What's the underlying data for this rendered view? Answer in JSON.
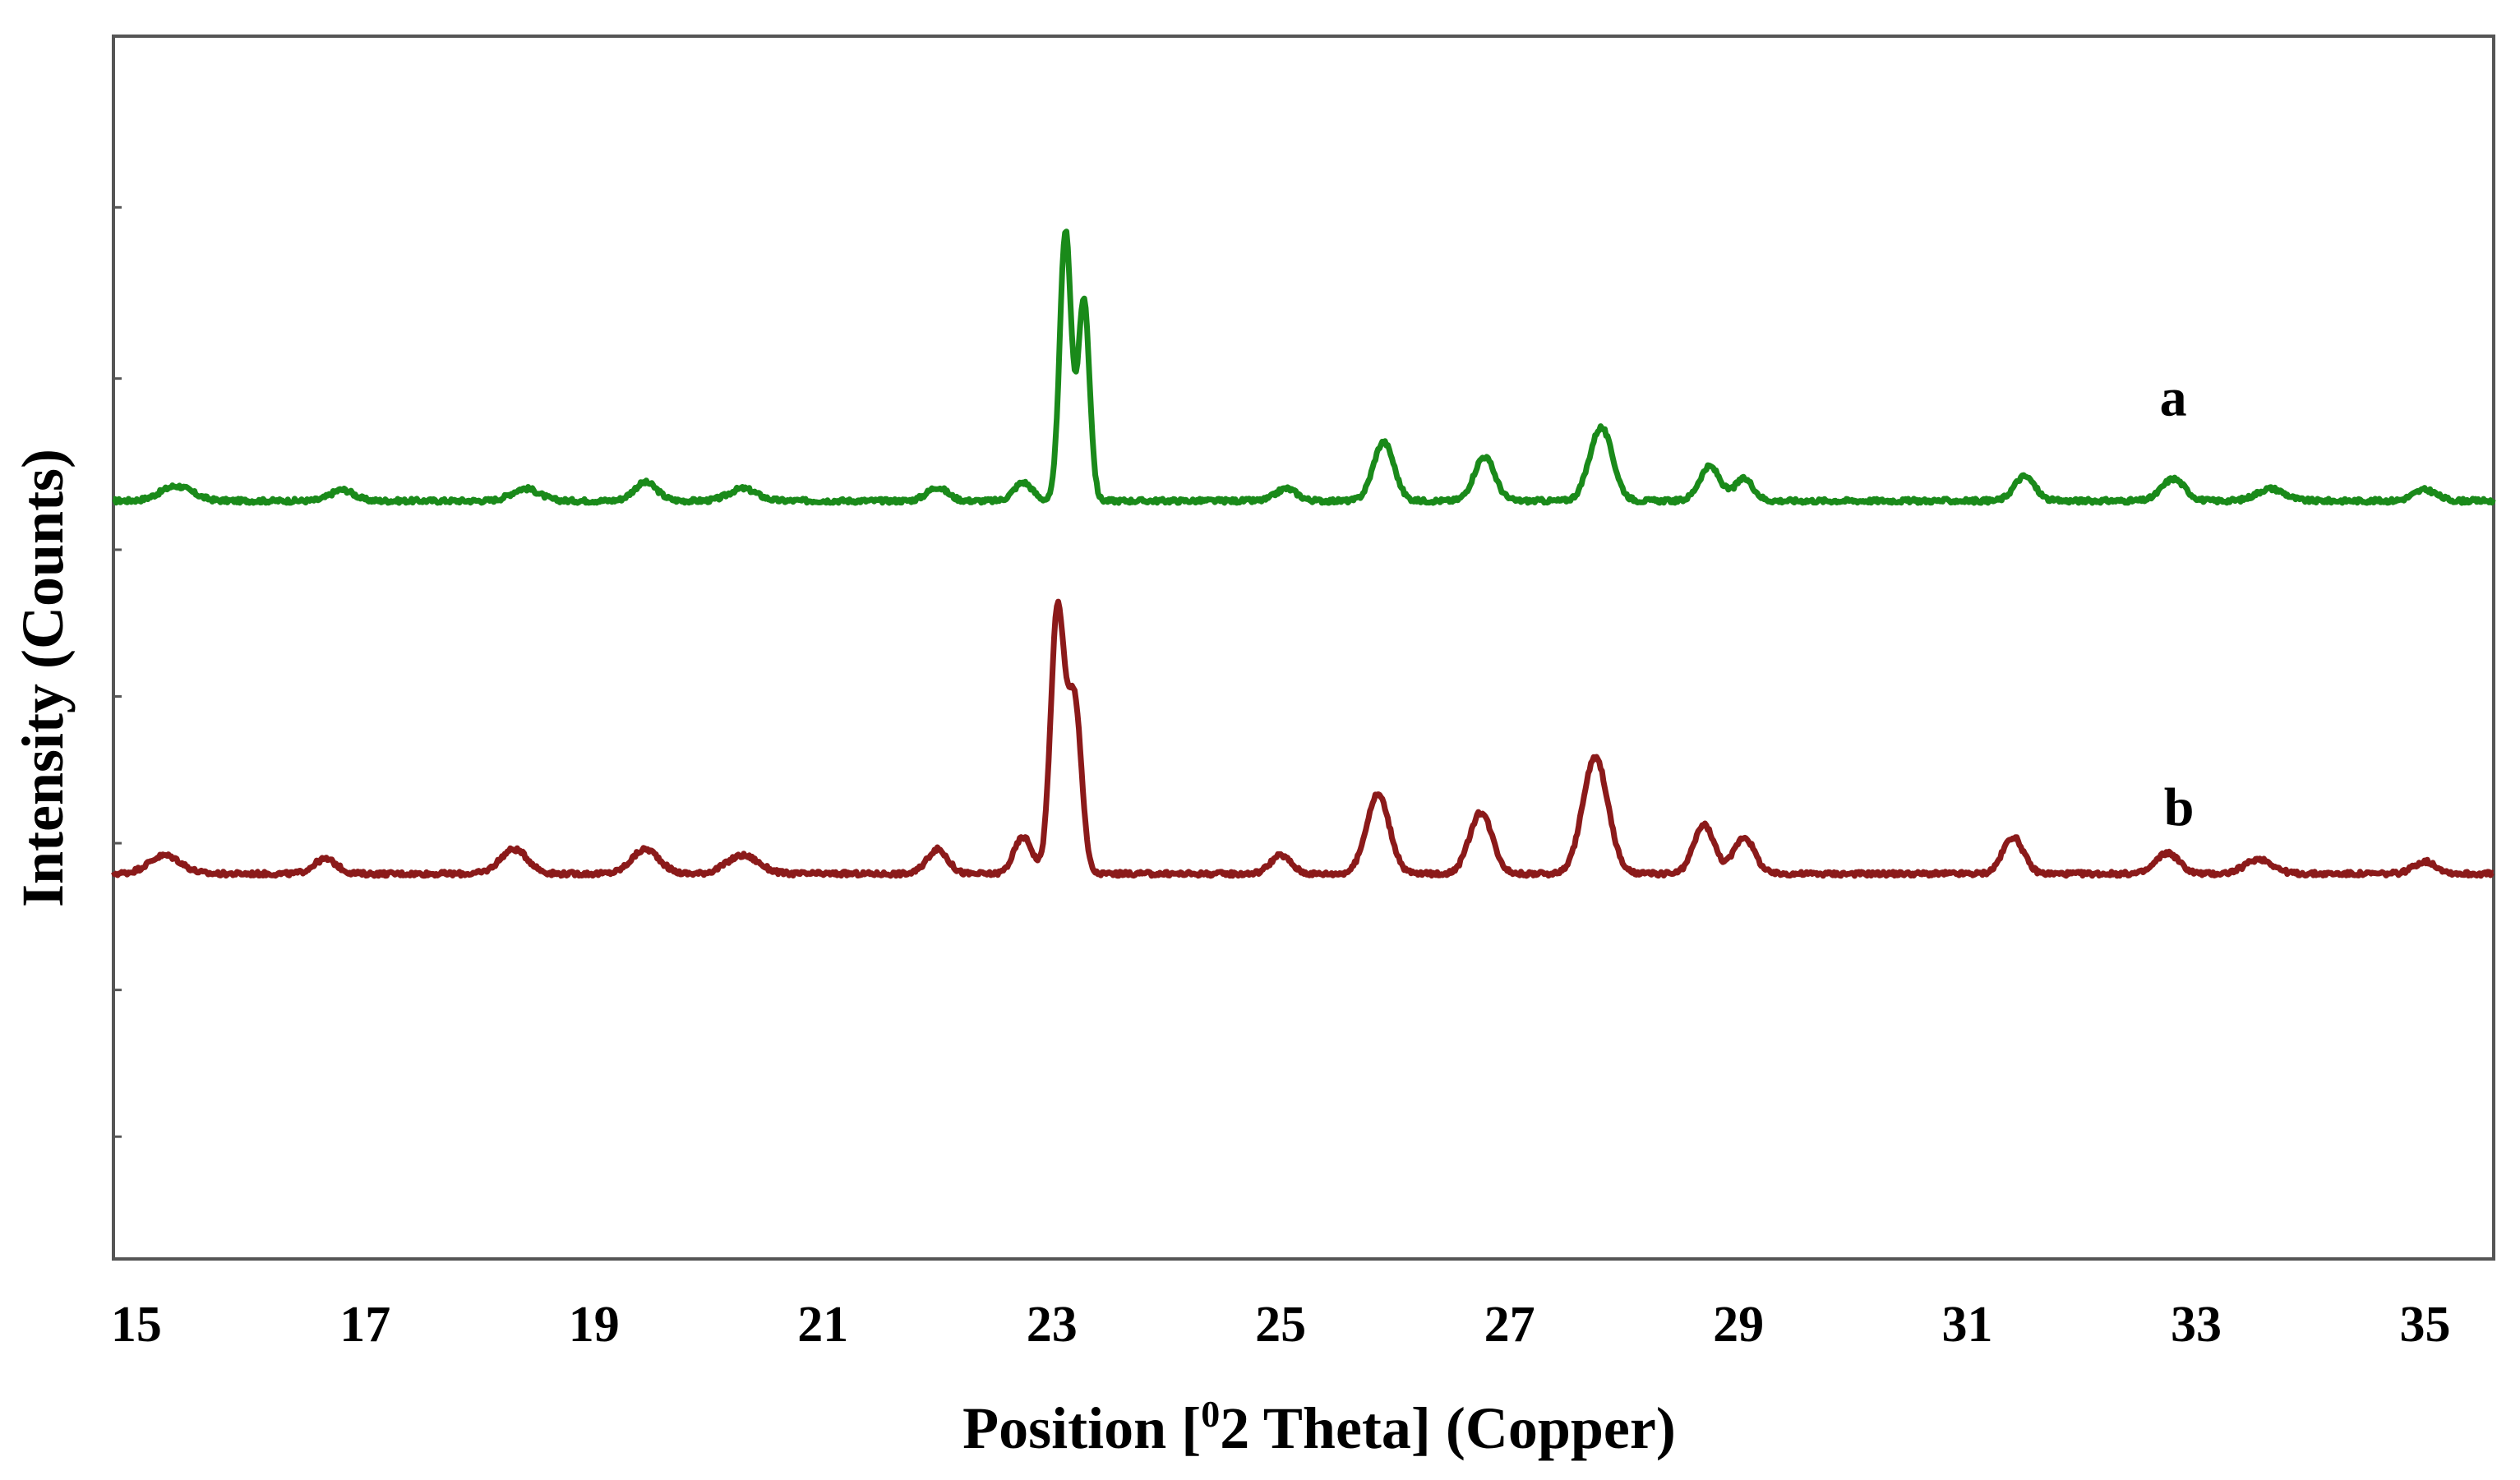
{
  "chart_data": {
    "type": "line",
    "title": "",
    "xlabel_pre": "Position [",
    "xlabel_sup": "0",
    "xlabel_post": "2 Theta] (Copper)",
    "ylabel": "Intensity (Counts)",
    "xlim": [
      14.8,
      35.6
    ],
    "ylim": [
      0,
      1000
    ],
    "x_ticks": [
      15,
      17,
      19,
      21,
      23,
      25,
      27,
      29,
      31,
      33,
      35
    ],
    "x_tick_labels": [
      "15",
      "17",
      "19",
      "21",
      "23",
      "25",
      "27",
      "29",
      "31",
      "33",
      "35"
    ],
    "grid": false,
    "legend": "none",
    "series": [
      {
        "name": "a",
        "color": "#1a8a1a",
        "baseline": 620,
        "label_at": [
          32.8,
          690
        ],
        "peaks": [
          [
            15.35,
            12,
            0.14
          ],
          [
            16.8,
            9,
            0.1
          ],
          [
            18.4,
            10,
            0.12
          ],
          [
            19.45,
            15,
            0.1
          ],
          [
            20.3,
            10,
            0.12
          ],
          [
            22.0,
            11,
            0.09
          ],
          [
            22.75,
            15,
            0.08
          ],
          [
            23.12,
            220,
            0.05
          ],
          [
            23.28,
            165,
            0.05
          ],
          [
            25.05,
            10,
            0.09
          ],
          [
            25.9,
            48,
            0.09
          ],
          [
            26.78,
            36,
            0.09
          ],
          [
            27.8,
            60,
            0.1
          ],
          [
            28.75,
            28,
            0.09
          ],
          [
            29.05,
            18,
            0.08
          ],
          [
            31.5,
            20,
            0.09
          ],
          [
            32.8,
            18,
            0.1
          ],
          [
            33.65,
            10,
            0.12
          ],
          [
            35.0,
            9,
            0.1
          ]
        ]
      },
      {
        "name": "b",
        "color": "#8b1a1a",
        "baseline": 315,
        "label_at": [
          32.85,
          355
        ],
        "peaks": [
          [
            15.25,
            15,
            0.14
          ],
          [
            16.65,
            12,
            0.1
          ],
          [
            18.3,
            20,
            0.12
          ],
          [
            19.45,
            20,
            0.12
          ],
          [
            20.3,
            15,
            0.14
          ],
          [
            22.0,
            20,
            0.09
          ],
          [
            22.75,
            30,
            0.08
          ],
          [
            23.05,
            215,
            0.06
          ],
          [
            23.2,
            140,
            0.06
          ],
          [
            25.0,
            15,
            0.09
          ],
          [
            25.85,
            65,
            0.1
          ],
          [
            26.75,
            50,
            0.1
          ],
          [
            27.75,
            95,
            0.11
          ],
          [
            28.7,
            40,
            0.09
          ],
          [
            29.05,
            30,
            0.09
          ],
          [
            31.4,
            30,
            0.09
          ],
          [
            32.75,
            17,
            0.1
          ],
          [
            33.55,
            12,
            0.12
          ],
          [
            35.0,
            10,
            0.1
          ]
        ]
      }
    ]
  }
}
